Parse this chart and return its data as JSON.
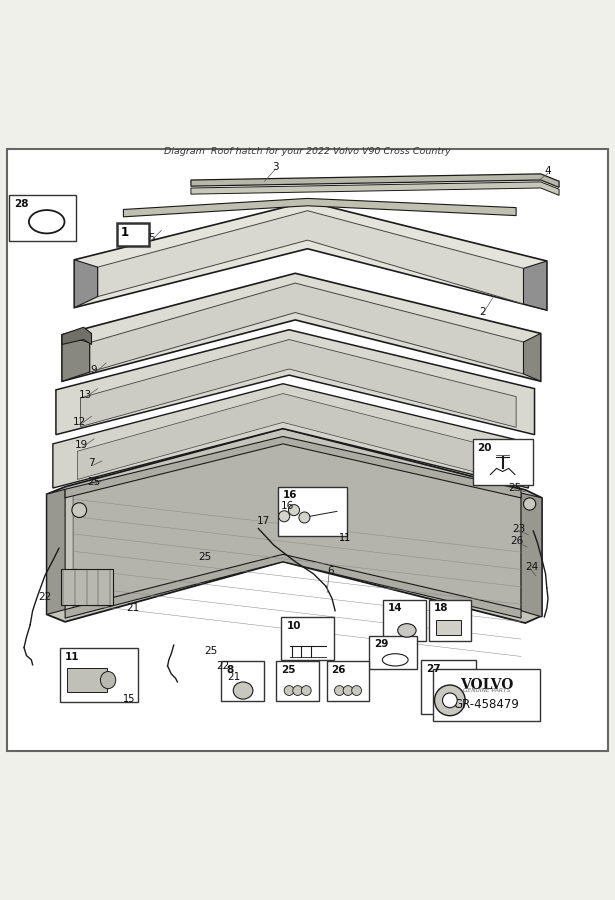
{
  "title": "Diagram  Roof hatch for your 2022 Volvo V90 Cross Country",
  "bg_color": "#f0f0eb",
  "border_color": "#888888",
  "line_color": "#222222",
  "part_ref": "GR-458479"
}
